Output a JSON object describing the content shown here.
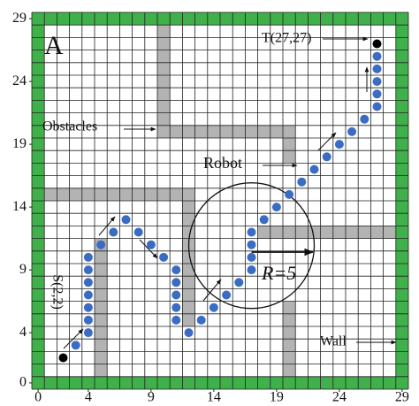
{
  "chart_data": {
    "type": "scatter",
    "panel_label": "A",
    "x": [
      3,
      4,
      4,
      4,
      4,
      4,
      4,
      4,
      5,
      6,
      7,
      8,
      9,
      10,
      11,
      11,
      11,
      11,
      11,
      12,
      13,
      14,
      15,
      16,
      17,
      17,
      17,
      17,
      18,
      19,
      20,
      21,
      22,
      23,
      24,
      25,
      26,
      27,
      27,
      27,
      27,
      27
    ],
    "values": [
      3,
      4,
      5,
      6,
      7,
      8,
      9,
      10,
      11,
      12,
      13,
      12,
      11,
      10,
      9,
      8,
      7,
      6,
      5,
      4,
      5,
      6,
      7,
      8,
      9,
      10,
      11,
      12,
      13,
      14,
      15,
      16,
      17,
      18,
      19,
      20,
      21,
      22,
      23,
      24,
      25,
      26
    ],
    "color": "#3b6cc4",
    "start": {
      "label": "S(2,2)",
      "x": 2,
      "y": 2
    },
    "target": {
      "label": "T(27,27)",
      "x": 27,
      "y": 27
    },
    "xlim": [
      -0.5,
      29.5
    ],
    "ylim": [
      -0.5,
      29.5
    ],
    "xticks": [
      0,
      4,
      9,
      14,
      19,
      24,
      29
    ],
    "yticks": [
      0,
      4,
      9,
      14,
      19,
      24,
      29
    ],
    "annotations": {
      "obstacles": "Obstacles",
      "robot": "Robot",
      "radius": "R=5",
      "wall": "Wall"
    }
  }
}
